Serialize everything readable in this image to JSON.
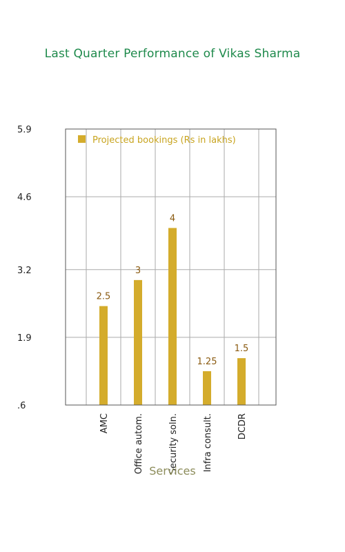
{
  "chart_data": {
    "type": "bar",
    "title": "Last Quarter Performance of Vikas Sharma",
    "xlabel": "Services",
    "ylabel": "",
    "categories": [
      "AMC",
      "Office autom.",
      "Security soln.",
      "Infra consult.",
      "DCDR"
    ],
    "series": [
      {
        "name": "Projected bookings (Rs in lakhs)",
        "values": [
          2.5,
          3,
          4,
          1.25,
          1.5
        ]
      }
    ],
    "data_labels": [
      "2.5",
      "3",
      "4",
      "1.25",
      "1.5"
    ],
    "ylim": [
      0.6,
      5.9
    ],
    "yticks": [
      0.6,
      1.9,
      3.2,
      4.6,
      5.9
    ],
    "ytick_labels": [
      ".6",
      "1.9",
      "3.2",
      "4.6",
      "5.9"
    ],
    "grid": true,
    "legend_position": "top-left",
    "colors": {
      "bar": "#d4ac2c",
      "grid": "#aaaaaa",
      "frame": "#555555",
      "title": "#1f8a4c"
    }
  }
}
